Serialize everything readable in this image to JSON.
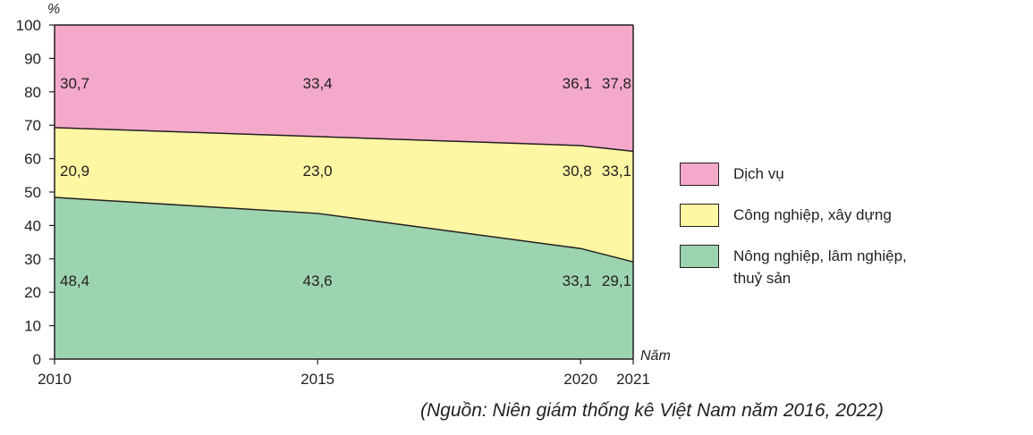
{
  "chart_data": {
    "type": "area",
    "stacked": true,
    "x": [
      2010,
      2015,
      2020,
      2021
    ],
    "x_tick_labels": [
      "2010",
      "2015",
      "2020",
      "2021"
    ],
    "xlabel": "Năm",
    "ylabel": "%",
    "ylim": [
      0,
      100
    ],
    "y_ticks": [
      0,
      10,
      20,
      30,
      40,
      50,
      60,
      70,
      80,
      90,
      100
    ],
    "series": [
      {
        "name": "Nông nghiệp, lâm nghiệp, thuỷ sản",
        "values": [
          48.4,
          43.6,
          33.1,
          29.1
        ],
        "labels": [
          "48,4",
          "43,6",
          "33,1",
          "29,1"
        ],
        "color": "#9dd4b0"
      },
      {
        "name": "Công nghiệp, xây dựng",
        "values": [
          20.9,
          23.0,
          30.8,
          33.1
        ],
        "labels": [
          "20,9",
          "23,0",
          "30,8",
          "33,1"
        ],
        "color": "#fdf6a3"
      },
      {
        "name": "Dịch vụ",
        "values": [
          30.7,
          33.4,
          36.1,
          37.8
        ],
        "labels": [
          "30,7",
          "33,4",
          "36,1",
          "37,8"
        ],
        "color": "#f4a9cb"
      }
    ],
    "legend": [
      {
        "label": "Dịch vụ",
        "color": "#f4a9cb"
      },
      {
        "label": "Công nghiệp, xây dựng",
        "color": "#fdf6a3"
      },
      {
        "label": "Nông nghiệp, lâm nghiệp,\nthuỷ sản",
        "color": "#9dd4b0"
      }
    ],
    "legend_position": "right",
    "grid": false
  },
  "source_note": "(Nguồn: Niên giám thống kê Việt Nam năm 2016, 2022)"
}
